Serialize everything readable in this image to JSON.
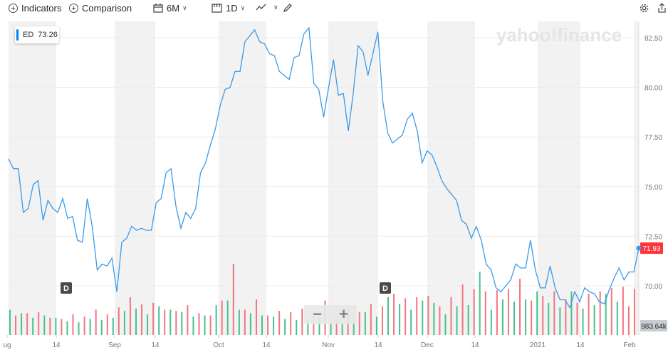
{
  "toolbar": {
    "indicators_label": "Indicators",
    "comparison_label": "Comparison",
    "range_label": "6M",
    "interval_label": "1D"
  },
  "watermark": "yahoo!finance",
  "legend": {
    "symbol": "ED",
    "value": "73.26",
    "color": "#0081f2"
  },
  "zoom": {
    "minus": "−",
    "plus": "+"
  },
  "chart_data": {
    "type": "line",
    "title": "",
    "xlabel": "",
    "ylabel": "",
    "ylim": [
      68.0,
      83.5
    ],
    "grid": true,
    "y_ticks": [
      "82.50",
      "80.00",
      "77.50",
      "75.00",
      "72.50",
      "70.00"
    ],
    "x_ticks": [
      "ug",
      "14",
      "Sep",
      "14",
      "Oct",
      "14",
      "Nov",
      "14",
      "Dec",
      "14",
      "2021",
      "14",
      "Feb"
    ],
    "last_price_label": "71.93",
    "volume_label": "983.64k",
    "dividend_marker": "D",
    "series": [
      {
        "values": [
          76.4,
          75.9,
          75.9,
          73.7,
          73.9,
          75.1,
          75.3,
          73.3,
          74.3,
          73.9,
          73.7,
          74.4,
          73.4,
          73.5,
          72.3,
          72.2,
          74.4,
          73.0,
          70.8,
          71.1,
          71.0,
          71.4,
          69.7,
          72.2,
          72.4,
          73.0,
          72.8,
          72.9,
          72.8,
          72.8,
          74.2,
          74.4,
          75.7,
          75.9,
          74.0,
          72.9,
          73.7,
          73.4,
          73.9,
          75.7,
          76.2,
          77.1,
          77.9,
          79.1,
          79.9,
          80.0,
          80.8,
          80.8,
          82.3,
          82.6,
          82.9,
          82.3,
          82.2,
          81.7,
          81.6,
          80.8,
          80.6,
          80.4,
          81.5,
          81.6,
          82.7,
          83.0,
          80.2,
          79.9,
          78.5,
          80.0,
          81.4,
          79.6,
          79.7,
          77.8,
          79.7,
          82.1,
          81.8,
          80.6,
          81.7,
          82.8,
          79.3,
          77.7,
          77.2,
          77.4,
          77.6,
          78.4,
          78.7,
          77.8,
          76.2,
          76.8,
          76.6,
          76.0,
          75.3,
          74.9,
          74.6,
          74.3,
          73.3,
          73.1,
          72.4,
          73.0,
          72.3,
          71.1,
          70.8,
          69.9,
          69.7,
          70.0,
          70.3,
          71.1,
          70.9,
          70.9,
          72.3,
          70.8,
          69.9,
          69.9,
          71.0,
          69.9,
          69.3,
          69.3,
          68.9,
          69.7,
          69.2,
          69.9,
          69.7,
          69.6,
          69.2,
          69.1,
          69.8,
          70.4,
          70.9,
          70.3,
          70.7,
          70.7,
          71.9
        ]
      }
    ],
    "volume_up": [
      0.22,
      0.19,
      0.15,
      0.17,
      0.15,
      0.12,
      0.11,
      0.14,
      0.13,
      0.15,
      0.21,
      0.23,
      0.18,
      0.25,
      0.22,
      0.2,
      0.16,
      0.17,
      0.26,
      0.3,
      0.22,
      0.19,
      0.17,
      0.16,
      0.14,
      0.13,
      0.13,
      0.15,
      0.12,
      0.11,
      0.14,
      0.2,
      0.16,
      0.33,
      0.27,
      0.22,
      0.3,
      0.28,
      0.18,
      0.25,
      0.26,
      0.55,
      0.22,
      0.31,
      0.29,
      0.31,
      0.38,
      0.28,
      0.24,
      0.38,
      0.23,
      0.26,
      0.36,
      0.29
    ],
    "volume_down": [
      0.17,
      0.19,
      0.2,
      0.15,
      0.14,
      0.18,
      0.16,
      0.22,
      0.18,
      0.24,
      0.33,
      0.27,
      0.28,
      0.22,
      0.21,
      0.26,
      0.19,
      0.17,
      0.3,
      0.62,
      0.22,
      0.31,
      0.17,
      0.21,
      0.2,
      0.23,
      0.16,
      0.3,
      0.14,
      0.23,
      0.2,
      0.27,
      0.25,
      0.36,
      0.32,
      0.33,
      0.34,
      0.25,
      0.33,
      0.44,
      0.4,
      0.38,
      0.39,
      0.4,
      0.49,
      0.3,
      0.34,
      0.38,
      0.31,
      0.28,
      0.36,
      0.38,
      0.41,
      0.42,
      0.25,
      0.4
    ],
    "colors": {
      "line": "#3b9ae8",
      "up": "#44c28e",
      "down": "#f2757e",
      "last_price_bg": "#ff333a",
      "band": "#f2f2f2"
    }
  }
}
